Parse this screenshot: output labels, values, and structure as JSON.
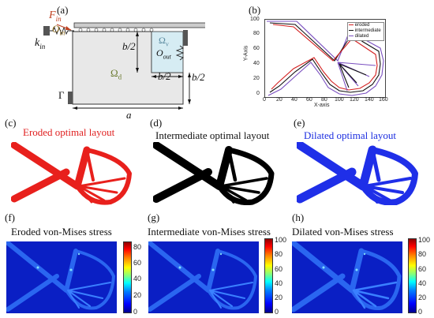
{
  "panels": {
    "a": {
      "letter": "(a)",
      "labels": {
        "f_in": "F",
        "f_in_sub": "in",
        "o_in": "O",
        "o_in_sub": "in",
        "k_in": "k",
        "k_in_sub": "in",
        "b_half_1": "b/2",
        "b_half_2": "b/2",
        "b_half_3": "b/2",
        "omega_v": "Ω",
        "omega_v_sub": "v",
        "o_out": "O",
        "o_out_sub": "out",
        "omega_d": "Ω",
        "omega_d_sub": "d",
        "gamma": "Γ",
        "a_dim": "a"
      }
    },
    "b": {
      "letter": "(b)",
      "y_axis_label": "Y-Axis",
      "x_axis_label": "X-axis",
      "x_ticks": [
        "0",
        "20",
        "40",
        "60",
        "80",
        "100",
        "120",
        "140",
        "160"
      ],
      "y_ticks": [
        "0",
        "20",
        "40",
        "60",
        "80",
        "100"
      ],
      "legend": [
        "eroded",
        "intermediate",
        "dilated"
      ],
      "colors": {
        "eroded": "#d42020",
        "intermediate": "#111111",
        "dilated": "#7a4fc0"
      }
    },
    "c": {
      "letter": "(c)",
      "caption": "Eroded optimal layout",
      "color": "#e8201c"
    },
    "d": {
      "letter": "(d)",
      "caption": "Intermediate optimal layout",
      "color": "#000000"
    },
    "e": {
      "letter": "(e)",
      "caption": "Dilated optimal layout",
      "color": "#1f2fe8"
    },
    "f": {
      "letter": "(f)",
      "caption": "Eroded von-Mises stress",
      "cbar_ticks": [
        "80",
        "60",
        "40",
        "20",
        "0"
      ]
    },
    "g": {
      "letter": "(g)",
      "caption": "Intermediate von-Mises stress",
      "cbar_ticks": [
        "100",
        "80",
        "60",
        "40",
        "20",
        "0"
      ]
    },
    "h": {
      "letter": "(h)",
      "caption": "Dilated von-Mises stress",
      "cbar_ticks": [
        "100",
        "80",
        "60",
        "40",
        "20",
        "0"
      ]
    }
  }
}
